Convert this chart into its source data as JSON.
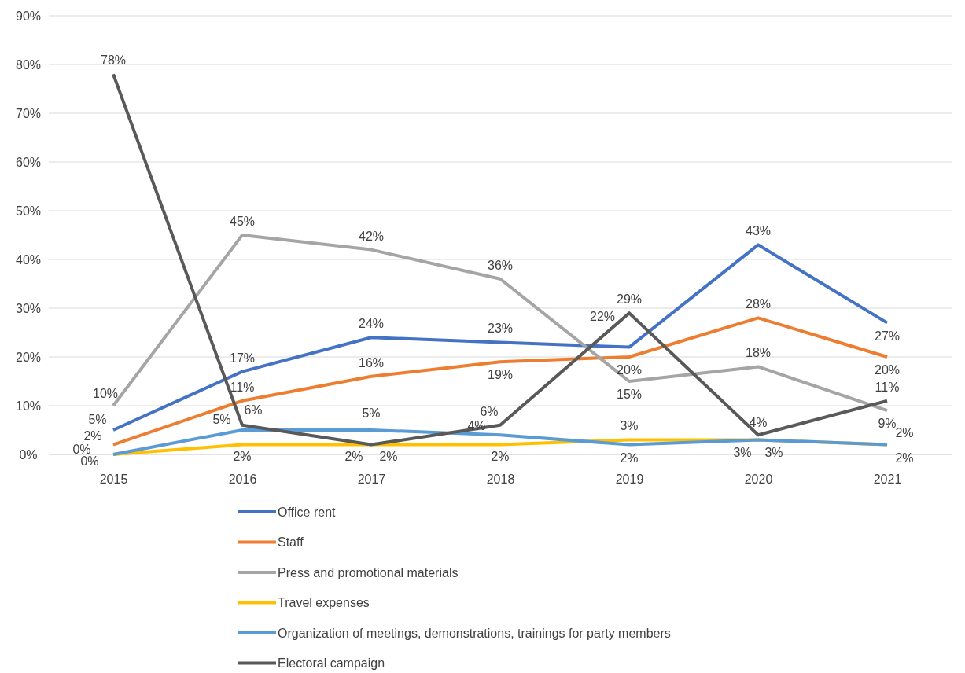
{
  "chart_data": {
    "type": "line",
    "categories": [
      "2015",
      "2016",
      "2017",
      "2018",
      "2019",
      "2020",
      "2021"
    ],
    "series": [
      {
        "name": "Office rent",
        "color": "#4472c4",
        "values": [
          5,
          17,
          24,
          23,
          22,
          43,
          27
        ],
        "value_labels": [
          "5%",
          "17%",
          "24%",
          "23%",
          "22%",
          "43%",
          "27%"
        ]
      },
      {
        "name": "Staff",
        "color": "#ed7d31",
        "values": [
          2,
          11,
          16,
          19,
          20,
          28,
          20
        ],
        "value_labels": [
          "2%",
          "11%",
          "16%",
          "19%",
          "20%",
          "28%",
          "20%"
        ]
      },
      {
        "name": "Press and promotional materials",
        "color": "#a5a5a5",
        "values": [
          10,
          45,
          42,
          36,
          15,
          18,
          9
        ],
        "value_labels": [
          "10%",
          "45%",
          "42%",
          "36%",
          "15%",
          "18%",
          "9%"
        ]
      },
      {
        "name": "Travel expenses",
        "color": "#ffc000",
        "values": [
          0,
          2,
          2,
          2,
          3,
          3,
          2
        ],
        "value_labels": [
          "0%",
          "2%",
          "2%",
          "2%",
          "3%",
          "3%",
          "2%"
        ]
      },
      {
        "name": "Organization of meetings, demonstrations, trainings for party members",
        "color": "#5b9bd5",
        "values": [
          0,
          5,
          5,
          4,
          2,
          3,
          2
        ],
        "value_labels": [
          "0%",
          "5%",
          "5%",
          "4%",
          "2%",
          "3%",
          "2%"
        ]
      },
      {
        "name": "Electoral campaign",
        "color": "#595959",
        "values": [
          78,
          6,
          2,
          6,
          29,
          4,
          11
        ],
        "value_labels": [
          "78%",
          "6%",
          "2%",
          "6%",
          "29%",
          "4%",
          "11%"
        ]
      }
    ],
    "ylim": [
      0,
      90
    ],
    "yticks": [
      {
        "value": 0,
        "label": "0%"
      },
      {
        "value": 10,
        "label": "10%"
      },
      {
        "value": 20,
        "label": "20%"
      },
      {
        "value": 30,
        "label": "30%"
      },
      {
        "value": 40,
        "label": "40%"
      },
      {
        "value": 50,
        "label": "50%"
      },
      {
        "value": 60,
        "label": "60%"
      },
      {
        "value": 70,
        "label": "70%"
      },
      {
        "value": 80,
        "label": "80%"
      },
      {
        "value": 90,
        "label": "90%"
      }
    ],
    "grid": "y",
    "legend": "bottom",
    "marker": "none",
    "line_style": "solid"
  }
}
